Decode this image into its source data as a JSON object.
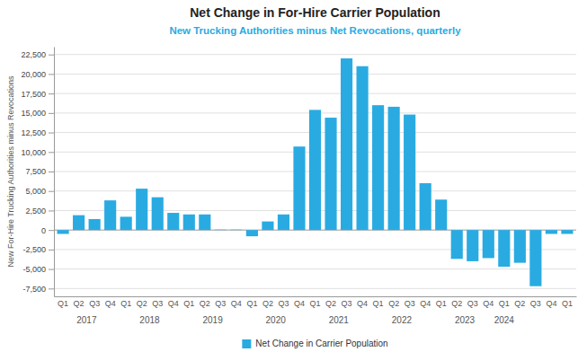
{
  "chart_data": {
    "type": "bar",
    "title": "Net Change in For-Hire Carrier Population",
    "subtitle": "New Trucking Authorities minus Net Revocations, quarterly",
    "ylabel": "New For-Hire Trucking Authorities minus Revocations",
    "categories": [
      "Q1",
      "Q2",
      "Q3",
      "Q4",
      "Q1",
      "Q2",
      "Q3",
      "Q4",
      "Q1",
      "Q2",
      "Q3",
      "Q4",
      "Q1",
      "Q2",
      "Q3",
      "Q4",
      "Q1",
      "Q2",
      "Q3",
      "Q4",
      "Q1",
      "Q2",
      "Q3",
      "Q4",
      "Q1",
      "Q2",
      "Q3",
      "Q4",
      "Q1",
      "Q2",
      "Q3",
      "Q4",
      "Q1"
    ],
    "series": [
      {
        "name": "Net Change in Carrier Population",
        "color": "#29ABE2",
        "values": [
          -500,
          1900,
          1400,
          3800,
          1700,
          5300,
          4200,
          2200,
          2000,
          2000,
          50,
          50,
          -800,
          1100,
          2000,
          10700,
          15400,
          14400,
          22000,
          21000,
          16000,
          15800,
          14800,
          6000,
          3900,
          -3700,
          -4000,
          -3600,
          -4700,
          -4200,
          -7200,
          -500,
          -500
        ]
      }
    ],
    "annotations": [
      {
        "text": "2017",
        "start": 0,
        "end": 3
      },
      {
        "text": "2018",
        "start": 4,
        "end": 7
      },
      {
        "text": "2019",
        "start": 8,
        "end": 11
      },
      {
        "text": "2020",
        "start": 12,
        "end": 15
      },
      {
        "text": "2021",
        "start": 16,
        "end": 19
      },
      {
        "text": "2022",
        "start": 20,
        "end": 23
      },
      {
        "text": "2023",
        "start": 24,
        "end": 27
      },
      {
        "text": "2024",
        "start": 28,
        "end": 28
      }
    ],
    "ylim": [
      -8500,
      23500
    ],
    "yticks": [
      {
        "value": -7500,
        "label": "-7,500"
      },
      {
        "value": -5000,
        "label": "-5,000"
      },
      {
        "value": -2500,
        "label": "-2,500"
      },
      0,
      {
        "value": 2500,
        "label": "2,500"
      },
      {
        "value": 5000,
        "label": "5,000"
      },
      {
        "value": 7500,
        "label": "7,500"
      },
      {
        "value": 10000,
        "label": "10,000"
      },
      {
        "value": 12500,
        "label": "12,500"
      },
      {
        "value": 15000,
        "label": "15,000"
      },
      {
        "value": 17500,
        "label": "17,500"
      },
      {
        "value": 20000,
        "label": "20,000"
      },
      {
        "value": 22500,
        "label": "22,500"
      }
    ],
    "grid": true,
    "legend": "bottom"
  }
}
